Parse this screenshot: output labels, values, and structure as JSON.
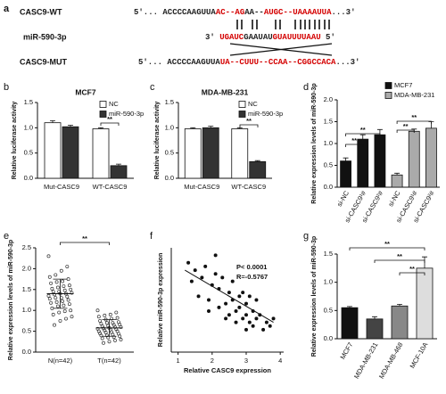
{
  "alignment": {
    "panel": "a",
    "rows": [
      {
        "name": "CASC9-WT",
        "segments": [
          {
            "text": "5'... ACCCCAAGUUA",
            "color": "#222222"
          },
          {
            "text": "AC--AG",
            "color": "#d40000"
          },
          {
            "text": "AA--",
            "color": "#222222"
          },
          {
            "text": "AU",
            "color": "#d40000"
          },
          {
            "text": "GC--UAAAAUUA",
            "color": "#d40000"
          },
          {
            "text": "...3'",
            "color": "#222222"
          }
        ]
      },
      {
        "name": "miR-590-3p",
        "segments": [
          {
            "text": "3' ",
            "color": "#222222"
          },
          {
            "text": "UGAUC",
            "color": "#d40000"
          },
          {
            "text": "GAAUAU",
            "color": "#222222"
          },
          {
            "text": "GUAUUUUAAU",
            "color": "#d40000"
          },
          {
            "text": " 5'",
            "color": "#222222"
          }
        ]
      },
      {
        "name": "CASC9-MUT",
        "segments": [
          {
            "text": "5'... ACCCCAAGUUA",
            "color": "#222222"
          },
          {
            "text": "UA--CUUU--CCAA--CGGCCACA",
            "color": "#d40000"
          },
          {
            "text": "...3'",
            "color": "#222222"
          }
        ]
      }
    ]
  },
  "chart_data": [
    {
      "type": "bar",
      "panel": "b",
      "title": "MCF7",
      "ylabel": "Relative luciferase activity",
      "categories": [
        "Mut-CASC9",
        "WT-CASC9"
      ],
      "series": [
        {
          "name": "NC",
          "color": "#ffffff",
          "values": [
            1.1,
            0.98
          ],
          "errors": [
            0.04,
            0.02
          ]
        },
        {
          "name": "miR-590-3p",
          "color": "#333333",
          "values": [
            1.02,
            0.25
          ],
          "errors": [
            0.03,
            0.03
          ]
        }
      ],
      "ylim": [
        0,
        1.5
      ],
      "yticks": [
        {
          "value": 0,
          "label": "0.0"
        },
        0.5,
        {
          "value": 1,
          "label": "1.0"
        },
        1.5
      ],
      "legend": "upper right",
      "significance": [
        "**"
      ]
    },
    {
      "type": "bar",
      "panel": "c",
      "title": "MDA-MB-231",
      "ylabel": "Relative luciferase activity",
      "categories": [
        "Mut-CASC9",
        "WT-CASC9"
      ],
      "series": [
        {
          "name": "NC",
          "color": "#ffffff",
          "values": [
            0.98,
            0.98
          ],
          "errors": [
            0.02,
            0.02
          ]
        },
        {
          "name": "miR-590-3p",
          "color": "#333333",
          "values": [
            1.0,
            0.33
          ],
          "errors": [
            0.03,
            0.02
          ]
        }
      ],
      "ylim": [
        0,
        1.5
      ],
      "yticks": [
        {
          "value": 0,
          "label": "0.0"
        },
        0.5,
        {
          "value": 1,
          "label": "1.0"
        },
        1.5
      ],
      "legend": "upper right",
      "significance": [
        "**"
      ]
    },
    {
      "type": "bar",
      "panel": "d",
      "ylabel": "Relative expression levels of miR-590-3p",
      "categories": [
        "si-NC",
        "si-CASC9¹#",
        "si-CASC9²#",
        "si-NC",
        "si-CASC9¹#",
        "si-CASC9²#"
      ],
      "series": [
        {
          "name": "MCF7",
          "color": "#111111",
          "values": [
            0.6,
            1.1,
            1.2,
            null,
            null,
            null
          ],
          "errors": [
            0.07,
            0.1,
            0.12,
            null,
            null,
            null
          ]
        },
        {
          "name": "MDA-MB-231",
          "color": "#aaaaaa",
          "values": [
            null,
            null,
            null,
            0.28,
            1.28,
            1.35
          ],
          "errors": [
            null,
            null,
            null,
            0.04,
            0.05,
            0.15
          ]
        }
      ],
      "ylim": [
        0,
        2
      ],
      "yticks": [
        {
          "value": 0,
          "label": "0.0"
        },
        0.5,
        {
          "value": 1,
          "label": "1.0"
        },
        1.5,
        {
          "value": 2,
          "label": "2.0"
        }
      ],
      "legend": "upper right",
      "significance": [
        "**",
        "**",
        "**",
        "**"
      ]
    },
    {
      "type": "strip",
      "panel": "e",
      "ylabel": "Relative expression levels of miR-590-3p",
      "categories": [
        "N(n=42)",
        "T(n=42)"
      ],
      "values": [
        [
          2.3,
          2.05,
          1.95,
          1.85,
          1.8,
          1.75,
          1.7,
          1.68,
          1.65,
          1.6,
          1.58,
          1.55,
          1.52,
          1.5,
          1.48,
          1.45,
          1.45,
          1.42,
          1.4,
          1.4,
          1.38,
          1.35,
          1.33,
          1.3,
          1.3,
          1.28,
          1.25,
          1.22,
          1.2,
          1.18,
          1.15,
          1.12,
          1.1,
          1.05,
          1.0,
          0.98,
          0.95,
          0.9,
          0.85,
          0.8,
          0.75,
          0.65
        ],
        [
          1.0,
          0.95,
          0.9,
          0.88,
          0.85,
          0.82,
          0.8,
          0.78,
          0.75,
          0.72,
          0.7,
          0.7,
          0.68,
          0.66,
          0.65,
          0.63,
          0.62,
          0.6,
          0.6,
          0.58,
          0.57,
          0.56,
          0.55,
          0.54,
          0.52,
          0.5,
          0.5,
          0.48,
          0.47,
          0.45,
          0.44,
          0.42,
          0.4,
          0.4,
          0.38,
          0.36,
          0.35,
          0.33,
          0.3,
          0.28,
          0.25,
          0.22
        ]
      ],
      "means": [
        1.4,
        0.58
      ],
      "sds": [
        0.35,
        0.2
      ],
      "color": "#333333",
      "ylim": [
        0,
        2.5
      ],
      "yticks": [
        {
          "value": 0,
          "label": "0.0"
        },
        0.5,
        {
          "value": 1,
          "label": "1.0"
        },
        1.5,
        {
          "value": 2,
          "label": "2.0"
        },
        2.5
      ],
      "significance": [
        "**"
      ]
    },
    {
      "type": "scatter",
      "panel": "f",
      "xlabel": "Relative CASC9 expression",
      "ylabel": "Relative miR-590-3p expression",
      "x": [
        1.3,
        1.4,
        1.5,
        1.6,
        1.7,
        1.8,
        1.9,
        2.0,
        2.1,
        2.2,
        2.2,
        2.3,
        2.4,
        2.5,
        2.5,
        2.6,
        2.6,
        2.7,
        2.7,
        2.8,
        2.8,
        2.9,
        2.9,
        3.0,
        3.0,
        3.0,
        3.1,
        3.1,
        3.2,
        3.2,
        3.3,
        3.4,
        3.5,
        3.6,
        3.7,
        3.8,
        1.9,
        2.4,
        3.3,
        2.1
      ],
      "y": [
        2.4,
        1.9,
        2.2,
        1.5,
        2.0,
        2.3,
        1.4,
        1.8,
        2.1,
        1.2,
        1.7,
        2.0,
        1.3,
        1.6,
        1.0,
        1.4,
        1.9,
        1.1,
        0.8,
        1.5,
        1.2,
        0.9,
        1.6,
        1.0,
        0.6,
        1.3,
        0.8,
        1.5,
        1.1,
        0.7,
        0.9,
        1.0,
        0.6,
        0.8,
        0.7,
        0.9,
        1.1,
        0.9,
        1.4,
        2.6
      ],
      "fit": {
        "x": [
          1.2,
          3.8
        ],
        "y": [
          2.2,
          0.8
        ]
      },
      "color": "#111111",
      "xlim": [
        0.8,
        4.1
      ],
      "xticks": [
        1,
        2,
        3,
        4
      ],
      "ylim": [
        0,
        2.8
      ],
      "annotations": [
        "P< 0.0001",
        "R=-0.5767"
      ]
    },
    {
      "type": "bar",
      "panel": "g",
      "ylabel": "Relative expression levels of miR-590-3p",
      "categories": [
        "MCF7",
        "MDA-MB-231",
        "MDA-MB-468",
        "MCF-10A"
      ],
      "values": [
        0.55,
        0.35,
        0.58,
        1.25
      ],
      "errors": [
        0.02,
        0.04,
        0.03,
        0.2
      ],
      "colors": [
        "#111111",
        "#444444",
        "#888888",
        "#dddddd"
      ],
      "ylim": [
        0,
        1.5
      ],
      "yticks": [
        {
          "value": 0,
          "label": "0.0"
        },
        0.5,
        {
          "value": 1,
          "label": "1.0"
        },
        1.5
      ],
      "significance": [
        "**",
        "**",
        "**"
      ]
    }
  ]
}
